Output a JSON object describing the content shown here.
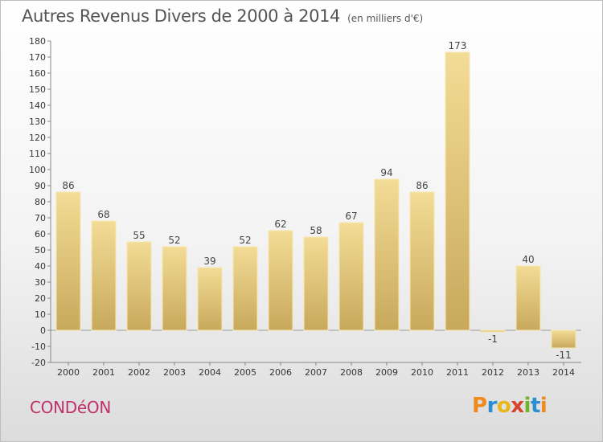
{
  "header": {
    "title": "Autres Revenus Divers de 2000 à 2014",
    "subtitle": "(en milliers d'€)"
  },
  "footer": {
    "commune": "CONDéON",
    "logo": "Proxiti",
    "logo_letters": [
      {
        "ch": "P",
        "color": "#f08a1c"
      },
      {
        "ch": "r",
        "color": "#2a8fd1"
      },
      {
        "ch": "o",
        "color": "#e8b81a"
      },
      {
        "ch": "x",
        "color": "#d8432b"
      },
      {
        "ch": "i",
        "color": "#6fb52c"
      },
      {
        "ch": "t",
        "color": "#2a8fd1"
      },
      {
        "ch": "i",
        "color": "#f08a1c"
      }
    ]
  },
  "chart_data": {
    "type": "bar",
    "categories": [
      "2000",
      "2001",
      "2002",
      "2003",
      "2004",
      "2005",
      "2006",
      "2007",
      "2008",
      "2009",
      "2010",
      "2011",
      "2012",
      "2013",
      "2014"
    ],
    "values": [
      86,
      68,
      55,
      52,
      39,
      52,
      62,
      58,
      67,
      94,
      86,
      173,
      -1,
      40,
      -11
    ],
    "value_labels": [
      "86",
      "68",
      "55",
      "52",
      "39",
      "52",
      "62",
      "58",
      "67",
      "94",
      "86",
      "173",
      "-1",
      "40",
      "-11"
    ],
    "ylim": [
      -20,
      180
    ],
    "yticks": [
      -20,
      -10,
      0,
      10,
      20,
      30,
      40,
      50,
      60,
      70,
      80,
      90,
      100,
      110,
      120,
      130,
      140,
      150,
      160,
      170,
      180
    ],
    "grid": false,
    "bar_color_light": "#f3dc96",
    "bar_color_dark": "#c8a95c"
  }
}
